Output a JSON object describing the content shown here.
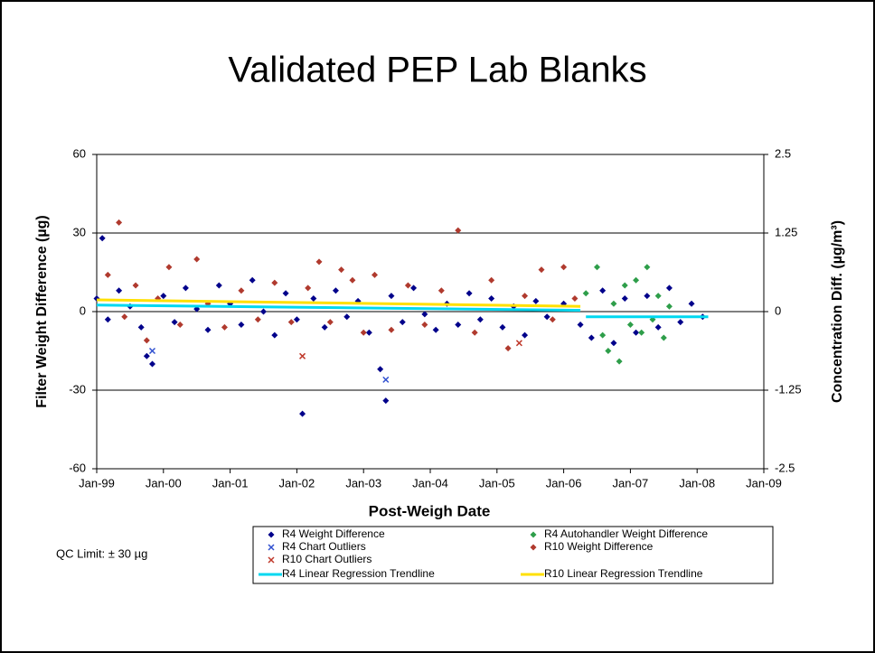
{
  "chart_data": {
    "type": "scatter",
    "title": "Validated PEP Lab Blanks",
    "xlabel": "Post-Weigh Date",
    "ylabel": "Filter Weight Difference (µg)",
    "y2label": "Concentration Diff. (µg/m³)",
    "annotation": "QC Limit:  ± 30 µg",
    "xlim": [
      "1999-01",
      "2009-01"
    ],
    "xticks": [
      {
        "value": "1999-01",
        "label": "Jan-99"
      },
      {
        "value": "2000-01",
        "label": "Jan-00"
      },
      {
        "value": "2001-01",
        "label": "Jan-01"
      },
      {
        "value": "2002-01",
        "label": "Jan-02"
      },
      {
        "value": "2003-01",
        "label": "Jan-03"
      },
      {
        "value": "2004-01",
        "label": "Jan-04"
      },
      {
        "value": "2005-01",
        "label": "Jan-05"
      },
      {
        "value": "2006-01",
        "label": "Jan-06"
      },
      {
        "value": "2007-01",
        "label": "Jan-07"
      },
      {
        "value": "2008-01",
        "label": "Jan-08"
      },
      {
        "value": "2009-01",
        "label": "Jan-09"
      }
    ],
    "ylim": [
      -60,
      60
    ],
    "yticks": [
      -60,
      -30,
      0,
      30,
      60
    ],
    "y2lim": [
      -2.5,
      2.5
    ],
    "y2ticks": [
      -2.5,
      -1.25,
      0,
      1.25,
      2.5
    ],
    "grid": true,
    "series": [
      {
        "name": "R4 Weight Difference",
        "color": "#00008b",
        "marker": "diamond",
        "x": [
          "1999-01",
          "1999-02",
          "1999-03",
          "1999-05",
          "1999-07",
          "1999-09",
          "1999-10",
          "1999-11",
          "2000-01",
          "2000-03",
          "2000-05",
          "2000-07",
          "2000-09",
          "2000-11",
          "2001-01",
          "2001-03",
          "2001-05",
          "2001-07",
          "2001-09",
          "2001-11",
          "2002-01",
          "2002-02",
          "2002-04",
          "2002-06",
          "2002-08",
          "2002-10",
          "2002-12",
          "2003-02",
          "2003-04",
          "2003-05",
          "2003-06",
          "2003-08",
          "2003-10",
          "2003-12",
          "2004-02",
          "2004-04",
          "2004-06",
          "2004-08",
          "2004-10",
          "2004-12",
          "2005-02",
          "2005-04",
          "2005-06",
          "2005-08",
          "2005-10",
          "2006-01",
          "2006-04",
          "2006-06",
          "2006-08",
          "2006-10",
          "2006-12",
          "2007-02",
          "2007-04",
          "2007-06",
          "2007-08",
          "2007-10",
          "2007-12",
          "2008-02"
        ],
        "values": [
          5,
          28,
          -3,
          8,
          2,
          -6,
          -17,
          -20,
          6,
          -4,
          9,
          1,
          -7,
          10,
          3,
          -5,
          12,
          0,
          -9,
          7,
          -3,
          -39,
          5,
          -6,
          8,
          -2,
          4,
          -8,
          -22,
          -34,
          6,
          -4,
          9,
          -1,
          -7,
          3,
          -5,
          7,
          -3,
          5,
          -6,
          2,
          -9,
          4,
          -2,
          3,
          -5,
          -10,
          8,
          -12,
          5,
          -8,
          6,
          -6,
          9,
          -4,
          3,
          -2
        ]
      },
      {
        "name": "R4 Autohandler Weight Difference",
        "color": "#2e9e4a",
        "marker": "diamond",
        "x": [
          "2006-05",
          "2006-07",
          "2006-08",
          "2006-09",
          "2006-10",
          "2006-11",
          "2006-12",
          "2007-01",
          "2007-02",
          "2007-03",
          "2007-04",
          "2007-05",
          "2007-06",
          "2007-07",
          "2007-08"
        ],
        "values": [
          7,
          17,
          -9,
          -15,
          3,
          -19,
          10,
          -5,
          12,
          -8,
          17,
          -3,
          6,
          -10,
          2
        ]
      },
      {
        "name": "R4 Chart Outliers",
        "color": "#3050d0",
        "marker": "x",
        "x": [
          "1999-11",
          "2003-05"
        ],
        "values": [
          -15,
          -26
        ]
      },
      {
        "name": "R10 Weight Difference",
        "color": "#b03a2e",
        "marker": "diamond",
        "x": [
          "1999-03",
          "1999-05",
          "1999-06",
          "1999-08",
          "1999-10",
          "1999-12",
          "2000-02",
          "2000-04",
          "2000-07",
          "2000-09",
          "2000-12",
          "2001-03",
          "2001-06",
          "2001-09",
          "2001-12",
          "2002-03",
          "2002-05",
          "2002-07",
          "2002-09",
          "2002-11",
          "2003-01",
          "2003-03",
          "2003-06",
          "2003-09",
          "2003-12",
          "2004-03",
          "2004-06",
          "2004-09",
          "2004-12",
          "2005-03",
          "2005-06",
          "2005-09",
          "2005-11",
          "2006-01",
          "2006-03"
        ],
        "values": [
          14,
          34,
          -2,
          10,
          -11,
          5,
          17,
          -5,
          20,
          3,
          -6,
          8,
          -3,
          11,
          -4,
          9,
          19,
          -4,
          16,
          12,
          -8,
          14,
          -7,
          10,
          -5,
          8,
          31,
          -8,
          12,
          -14,
          6,
          16,
          -3,
          17,
          5
        ]
      },
      {
        "name": "R10 Chart Outliers",
        "color": "#c0392b",
        "marker": "x",
        "x": [
          "2002-02",
          "2005-05"
        ],
        "values": [
          -17,
          -12
        ]
      },
      {
        "name": "R4 Linear Regression Trendline",
        "color": "#00d8f0",
        "marker": "line",
        "x": [
          "1999-01",
          "2006-04",
          "2006-05",
          "2006-05",
          "2008-03"
        ],
        "values": [
          2.5,
          0.5,
          null,
          -2,
          -2
        ]
      },
      {
        "name": "R10 Linear Regression Trendline",
        "color": "#ffe000",
        "marker": "line",
        "x": [
          "1999-01",
          "2006-04"
        ],
        "values": [
          4.5,
          2
        ]
      }
    ]
  }
}
